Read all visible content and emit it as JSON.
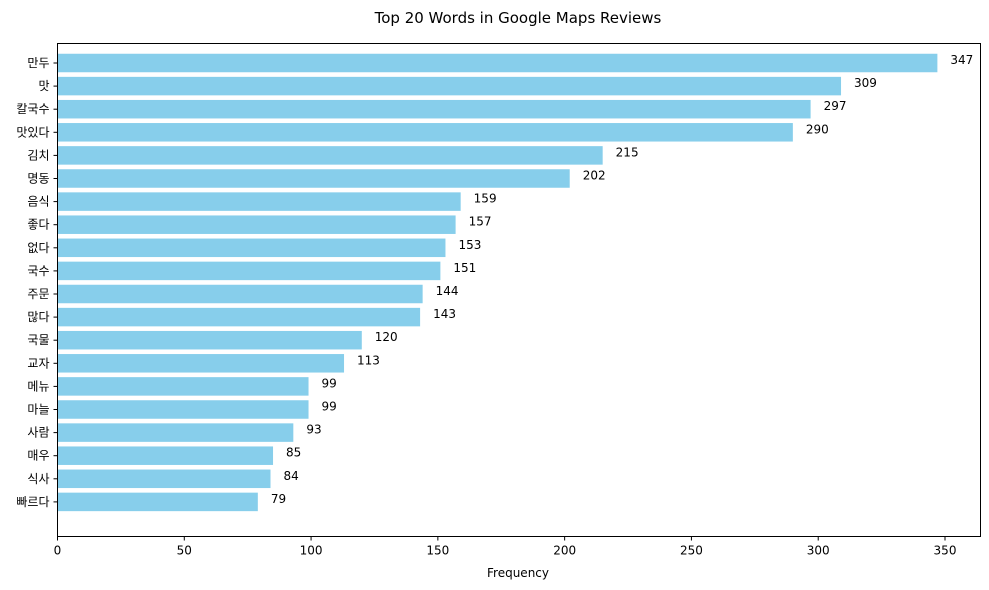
{
  "chart_data": {
    "type": "bar",
    "orientation": "horizontal",
    "title": "Top 20 Words in Google Maps Reviews",
    "xlabel": "Frequency",
    "ylabel": "",
    "xlim": [
      0,
      364
    ],
    "xticks": [
      0,
      50,
      100,
      150,
      200,
      250,
      300,
      350
    ],
    "bar_color": "#87ceeb",
    "grid": false,
    "categories": [
      "만두",
      "맛",
      "칼국수",
      "맛있다",
      "김치",
      "명동",
      "음식",
      "좋다",
      "없다",
      "국수",
      "주문",
      "많다",
      "국물",
      "교자",
      "메뉴",
      "마늘",
      "사람",
      "매우",
      "식사",
      "빠르다"
    ],
    "values": [
      347,
      309,
      297,
      290,
      215,
      202,
      159,
      157,
      153,
      151,
      144,
      143,
      120,
      113,
      99,
      99,
      93,
      85,
      84,
      79
    ]
  }
}
